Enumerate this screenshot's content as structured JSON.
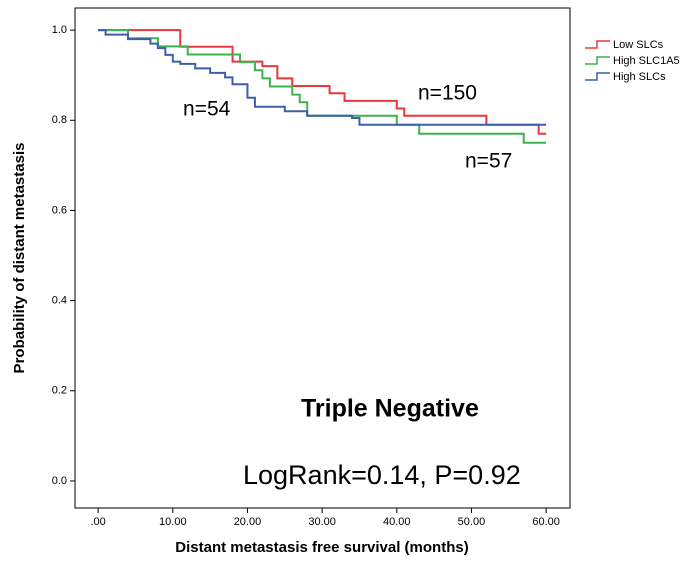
{
  "chart_data": {
    "type": "step",
    "xlabel": "Distant metastasis free survival (months)",
    "ylabel": "Probability of distant metastasis",
    "xlim": [
      -3.1,
      63.2
    ],
    "ylim": [
      -0.06,
      1.049
    ],
    "xticks": [
      {
        "value": 0,
        "label": ".00"
      },
      {
        "value": 10,
        "label": "10.00"
      },
      {
        "value": 20,
        "label": "20.00"
      },
      {
        "value": 30,
        "label": "30.00"
      },
      {
        "value": 40,
        "label": "40.00"
      },
      {
        "value": 50,
        "label": "50.00"
      },
      {
        "value": 60,
        "label": "60.00"
      }
    ],
    "yticks": [
      {
        "value": 0,
        "label": "0.0"
      },
      0.2,
      0.4,
      0.6,
      0.8,
      {
        "value": 1,
        "label": "1.0"
      }
    ],
    "series": [
      {
        "name": "Low SLCs",
        "color": "#e8383d",
        "x": [
          0,
          11,
          18,
          22,
          24,
          26,
          31,
          33,
          40,
          41,
          52,
          59,
          60
        ],
        "values": [
          1.0,
          0.963,
          0.93,
          0.92,
          0.893,
          0.876,
          0.86,
          0.843,
          0.826,
          0.81,
          0.79,
          0.77,
          0.77
        ]
      },
      {
        "name": "High SLC1A5",
        "color": "#3cb44b",
        "x": [
          0,
          4,
          8,
          12,
          19,
          21,
          22,
          23,
          26,
          27,
          28,
          40,
          43,
          57,
          60
        ],
        "values": [
          1.0,
          0.982,
          0.964,
          0.946,
          0.929,
          0.911,
          0.893,
          0.875,
          0.857,
          0.84,
          0.81,
          0.79,
          0.77,
          0.75,
          0.75
        ]
      },
      {
        "name": "High SLCs",
        "color": "#3b5fae",
        "x": [
          0,
          1,
          4,
          7,
          8,
          9,
          10,
          11,
          13,
          15,
          17,
          18,
          20,
          21,
          25,
          28,
          34,
          35,
          60
        ],
        "values": [
          1.0,
          0.99,
          0.98,
          0.97,
          0.96,
          0.945,
          0.93,
          0.925,
          0.915,
          0.905,
          0.895,
          0.88,
          0.85,
          0.83,
          0.82,
          0.81,
          0.805,
          0.79,
          0.79
        ]
      }
    ],
    "annotations": [
      "n=54",
      "n=150",
      "n=57",
      "Triple Negative",
      "LogRank=0.14, P=0.92"
    ]
  }
}
